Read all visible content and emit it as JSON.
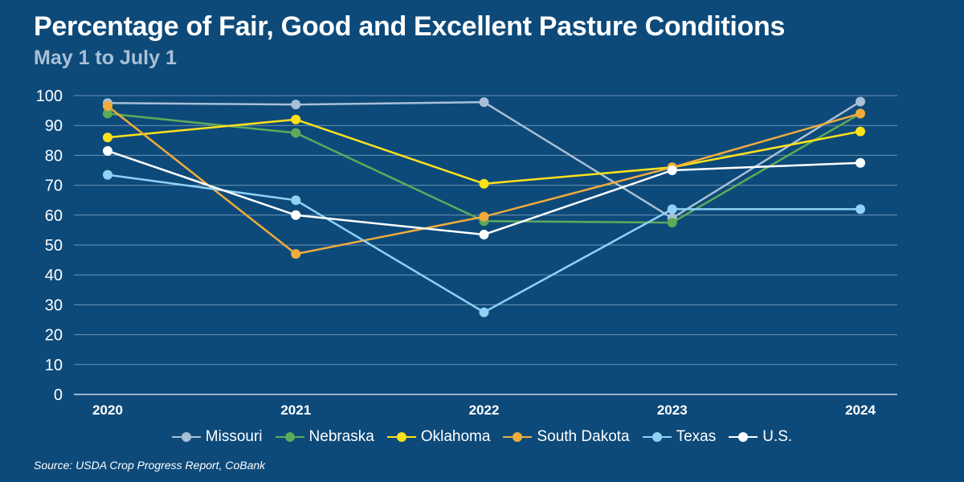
{
  "header": {
    "title": "Percentage of Fair, Good and Excellent Pasture Conditions",
    "subtitle": "May 1 to July 1"
  },
  "source": "Source: USDA Crop Progress Report, CoBank",
  "chart_data": {
    "type": "line",
    "title": "Percentage of Fair, Good and Excellent Pasture Conditions",
    "subtitle": "May 1 to July 1",
    "x": [
      "2020",
      "2021",
      "2022",
      "2023",
      "2024"
    ],
    "ylim": [
      0,
      100
    ],
    "yticks": [
      0,
      10,
      20,
      30,
      40,
      50,
      60,
      70,
      80,
      90,
      100
    ],
    "grid": true,
    "legend_position": "bottom",
    "series": [
      {
        "name": "Missouri",
        "color": "#a9bfd6",
        "values": [
          97.5,
          97,
          97.8,
          59,
          98
        ]
      },
      {
        "name": "Nebraska",
        "color": "#5eaa5a",
        "values": [
          94,
          87.5,
          58,
          57.5,
          94
        ]
      },
      {
        "name": "Oklahoma",
        "color": "#ffe11b",
        "values": [
          86,
          92,
          70.5,
          76,
          88
        ]
      },
      {
        "name": "South Dakota",
        "color": "#f0ac3a",
        "values": [
          96.5,
          47,
          59.5,
          76,
          94
        ]
      },
      {
        "name": "Texas",
        "color": "#8fd2f5",
        "values": [
          73.5,
          65,
          27.5,
          62,
          62
        ]
      },
      {
        "name": "U.S.",
        "color": "#ffffff",
        "values": [
          81.5,
          60,
          53.5,
          75,
          77.5
        ]
      }
    ]
  }
}
